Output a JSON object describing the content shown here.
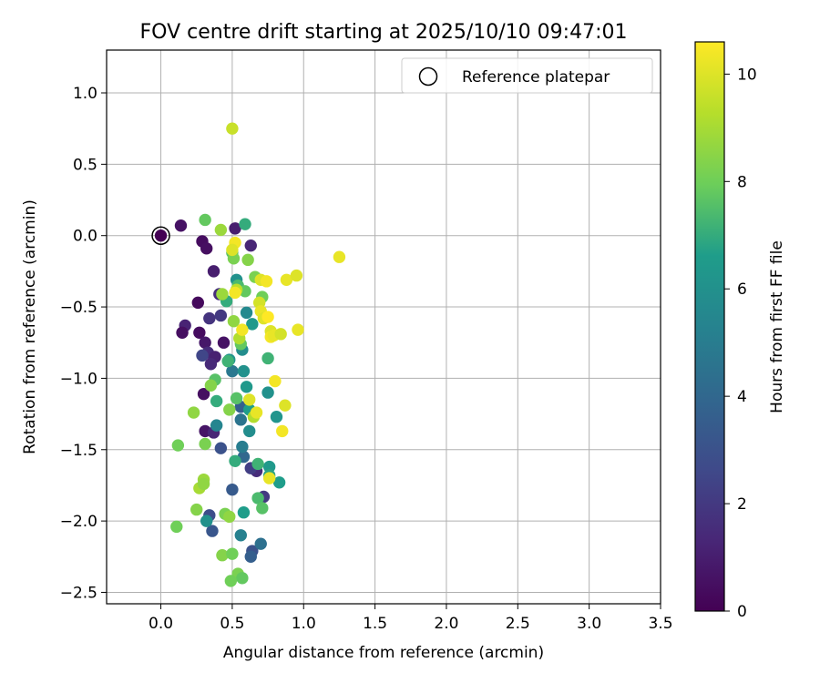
{
  "chart_data": {
    "type": "scatter",
    "title": "FOV centre drift starting at 2025/10/10 09:47:01",
    "xlabel": "Angular distance from reference (arcmin)",
    "ylabel": "Rotation from reference (arcmin)",
    "xlim": [
      -0.38,
      3.5
    ],
    "ylim": [
      -2.58,
      1.3
    ],
    "x_ticks": [
      0.0,
      0.5,
      1.0,
      1.5,
      2.0,
      2.5,
      3.0,
      3.5
    ],
    "x_tick_labels": [
      "0.0",
      "0.5",
      "1.0",
      "1.5",
      "2.0",
      "2.5",
      "3.0",
      "3.5"
    ],
    "y_ticks": [
      -2.5,
      -2.0,
      -1.5,
      -1.0,
      -0.5,
      0.0,
      0.5,
      1.0
    ],
    "y_tick_labels": [
      "−2.5",
      "−2.0",
      "−1.5",
      "−1.0",
      "−0.5",
      "0.0",
      "0.5",
      "1.0"
    ],
    "grid": true,
    "legend": {
      "label": "Reference platepar",
      "placement": "top-right"
    },
    "reference_point": {
      "x": 0.0,
      "y": 0.0,
      "hours": 0.0
    },
    "colorbar": {
      "label": "Hours from first FF file",
      "min": 0,
      "max": 10.6,
      "ticks": [
        0,
        2,
        4,
        6,
        8,
        10
      ],
      "tick_labels": [
        "0",
        "2",
        "4",
        "6",
        "8",
        "10"
      ],
      "colormap": "viridis"
    },
    "colormap_stops": [
      "#440154",
      "#482777",
      "#3f4a8a",
      "#31678e",
      "#26838f",
      "#1f9d8a",
      "#6cce5a",
      "#b6de2b",
      "#fee825"
    ],
    "points": [
      {
        "x": 0.14,
        "y": 0.07,
        "h": 0.6
      },
      {
        "x": 0.29,
        "y": -0.04,
        "h": 0.4
      },
      {
        "x": 0.32,
        "y": -0.09,
        "h": 0.5
      },
      {
        "x": 0.37,
        "y": -0.25,
        "h": 1.0
      },
      {
        "x": 0.26,
        "y": -0.47,
        "h": 0.3
      },
      {
        "x": 0.41,
        "y": -0.41,
        "h": 1.6
      },
      {
        "x": 0.34,
        "y": -0.58,
        "h": 1.8
      },
      {
        "x": 0.42,
        "y": -0.56,
        "h": 2.0
      },
      {
        "x": 0.17,
        "y": -0.63,
        "h": 1.2
      },
      {
        "x": 0.15,
        "y": -0.68,
        "h": 0.5
      },
      {
        "x": 0.27,
        "y": -0.68,
        "h": 0.4
      },
      {
        "x": 0.31,
        "y": -0.75,
        "h": 0.8
      },
      {
        "x": 0.44,
        "y": -0.75,
        "h": 0.6
      },
      {
        "x": 0.33,
        "y": -0.82,
        "h": 1.5
      },
      {
        "x": 0.29,
        "y": -0.84,
        "h": 2.5
      },
      {
        "x": 0.38,
        "y": -0.85,
        "h": 1.1
      },
      {
        "x": 0.35,
        "y": -0.9,
        "h": 1.4
      },
      {
        "x": 0.3,
        "y": -1.11,
        "h": 0.5
      },
      {
        "x": 0.31,
        "y": -1.37,
        "h": 0.7
      },
      {
        "x": 0.37,
        "y": -1.38,
        "h": 1.3
      },
      {
        "x": 0.42,
        "y": -1.49,
        "h": 3.0
      },
      {
        "x": 0.52,
        "y": 0.05,
        "h": 1.0
      },
      {
        "x": 0.63,
        "y": -0.07,
        "h": 1.3
      },
      {
        "x": 0.67,
        "y": -1.65,
        "h": 1.5
      },
      {
        "x": 0.63,
        "y": -1.63,
        "h": 2.2
      },
      {
        "x": 0.72,
        "y": -1.83,
        "h": 2.0
      },
      {
        "x": 0.5,
        "y": -1.78,
        "h": 3.4
      },
      {
        "x": 0.34,
        "y": -1.96,
        "h": 2.8
      },
      {
        "x": 0.36,
        "y": -2.07,
        "h": 3.2
      },
      {
        "x": 0.64,
        "y": -2.21,
        "h": 3.0
      },
      {
        "x": 0.7,
        "y": -2.16,
        "h": 4.4
      },
      {
        "x": 0.63,
        "y": -2.25,
        "h": 3.6
      },
      {
        "x": 0.56,
        "y": -2.1,
        "h": 5.2
      },
      {
        "x": 0.5,
        "y": -0.95,
        "h": 4.8
      },
      {
        "x": 0.56,
        "y": -1.2,
        "h": 3.6
      },
      {
        "x": 0.56,
        "y": -1.29,
        "h": 4.6
      },
      {
        "x": 0.58,
        "y": -1.55,
        "h": 4.0
      },
      {
        "x": 0.57,
        "y": -1.48,
        "h": 5.0
      },
      {
        "x": 0.39,
        "y": -1.33,
        "h": 5.4
      },
      {
        "x": 0.57,
        "y": -0.8,
        "h": 5.8
      },
      {
        "x": 0.6,
        "y": -0.54,
        "h": 5.6
      },
      {
        "x": 0.53,
        "y": -0.31,
        "h": 6.0
      },
      {
        "x": 0.64,
        "y": -0.62,
        "h": 6.4
      },
      {
        "x": 0.58,
        "y": -0.95,
        "h": 6.0
      },
      {
        "x": 0.48,
        "y": -0.87,
        "h": 6.2
      },
      {
        "x": 0.6,
        "y": -1.06,
        "h": 6.4
      },
      {
        "x": 0.62,
        "y": -1.37,
        "h": 5.8
      },
      {
        "x": 0.62,
        "y": -1.22,
        "h": 6.6
      },
      {
        "x": 0.75,
        "y": -1.1,
        "h": 6.0
      },
      {
        "x": 0.81,
        "y": -1.27,
        "h": 6.2
      },
      {
        "x": 0.76,
        "y": -1.62,
        "h": 6.4
      },
      {
        "x": 0.76,
        "y": -1.68,
        "h": 6.8
      },
      {
        "x": 0.83,
        "y": -1.73,
        "h": 6.6
      },
      {
        "x": 0.68,
        "y": -1.6,
        "h": 7.2
      },
      {
        "x": 0.52,
        "y": -1.58,
        "h": 7.0
      },
      {
        "x": 0.32,
        "y": -2.0,
        "h": 6.0
      },
      {
        "x": 0.58,
        "y": -1.94,
        "h": 6.6
      },
      {
        "x": 0.68,
        "y": -1.84,
        "h": 7.4
      },
      {
        "x": 0.71,
        "y": -1.91,
        "h": 7.6
      },
      {
        "x": 0.59,
        "y": 0.08,
        "h": 7.0
      },
      {
        "x": 0.31,
        "y": 0.11,
        "h": 7.8
      },
      {
        "x": 0.42,
        "y": 0.04,
        "h": 8.8
      },
      {
        "x": 0.5,
        "y": -0.12,
        "h": 7.6
      },
      {
        "x": 0.51,
        "y": -0.16,
        "h": 8.2
      },
      {
        "x": 0.61,
        "y": -0.17,
        "h": 8.4
      },
      {
        "x": 0.54,
        "y": -0.35,
        "h": 7.4
      },
      {
        "x": 0.59,
        "y": -0.39,
        "h": 7.8
      },
      {
        "x": 0.46,
        "y": -0.46,
        "h": 7.0
      },
      {
        "x": 0.66,
        "y": -0.29,
        "h": 8.2
      },
      {
        "x": 0.71,
        "y": -0.43,
        "h": 8.0
      },
      {
        "x": 0.43,
        "y": -0.41,
        "h": 8.8
      },
      {
        "x": 0.53,
        "y": -0.38,
        "h": 9.4
      },
      {
        "x": 0.51,
        "y": -0.6,
        "h": 8.6
      },
      {
        "x": 0.56,
        "y": -0.76,
        "h": 7.8
      },
      {
        "x": 0.55,
        "y": -0.72,
        "h": 9.2
      },
      {
        "x": 0.47,
        "y": -0.88,
        "h": 7.2
      },
      {
        "x": 0.38,
        "y": -1.01,
        "h": 7.6
      },
      {
        "x": 0.35,
        "y": -1.05,
        "h": 8.4
      },
      {
        "x": 0.39,
        "y": -1.16,
        "h": 7.0
      },
      {
        "x": 0.48,
        "y": -1.22,
        "h": 8.4
      },
      {
        "x": 0.53,
        "y": -1.14,
        "h": 7.6
      },
      {
        "x": 0.23,
        "y": -1.24,
        "h": 8.6
      },
      {
        "x": 0.12,
        "y": -1.47,
        "h": 8.0
      },
      {
        "x": 0.31,
        "y": -1.46,
        "h": 8.2
      },
      {
        "x": 0.3,
        "y": -1.71,
        "h": 8.8
      },
      {
        "x": 0.27,
        "y": -1.77,
        "h": 9.0
      },
      {
        "x": 0.3,
        "y": -1.74,
        "h": 8.6
      },
      {
        "x": 0.25,
        "y": -1.92,
        "h": 8.4
      },
      {
        "x": 0.45,
        "y": -1.95,
        "h": 8.2
      },
      {
        "x": 0.48,
        "y": -1.97,
        "h": 8.6
      },
      {
        "x": 0.11,
        "y": -2.04,
        "h": 8.0
      },
      {
        "x": 0.43,
        "y": -2.24,
        "h": 8.4
      },
      {
        "x": 0.5,
        "y": -2.23,
        "h": 8.0
      },
      {
        "x": 0.54,
        "y": -2.37,
        "h": 8.2
      },
      {
        "x": 0.57,
        "y": -2.4,
        "h": 7.8
      },
      {
        "x": 0.49,
        "y": -2.42,
        "h": 8.0
      },
      {
        "x": 0.75,
        "y": -0.86,
        "h": 7.2
      },
      {
        "x": 0.65,
        "y": -1.27,
        "h": 9.2
      },
      {
        "x": 0.5,
        "y": 0.75,
        "h": 9.6
      },
      {
        "x": 1.25,
        "y": -0.15,
        "h": 10.2
      },
      {
        "x": 0.52,
        "y": -0.05,
        "h": 10.4
      },
      {
        "x": 0.5,
        "y": -0.1,
        "h": 10.0
      },
      {
        "x": 0.7,
        "y": -0.31,
        "h": 10.0
      },
      {
        "x": 0.74,
        "y": -0.32,
        "h": 10.4
      },
      {
        "x": 0.88,
        "y": -0.31,
        "h": 10.2
      },
      {
        "x": 0.95,
        "y": -0.28,
        "h": 10.0
      },
      {
        "x": 0.52,
        "y": -0.4,
        "h": 10.4
      },
      {
        "x": 0.69,
        "y": -0.47,
        "h": 9.8
      },
      {
        "x": 0.7,
        "y": -0.53,
        "h": 10.2
      },
      {
        "x": 0.72,
        "y": -0.58,
        "h": 10.0
      },
      {
        "x": 0.75,
        "y": -0.57,
        "h": 10.6
      },
      {
        "x": 0.57,
        "y": -0.66,
        "h": 10.4
      },
      {
        "x": 0.77,
        "y": -0.67,
        "h": 10.0
      },
      {
        "x": 0.77,
        "y": -0.71,
        "h": 10.4
      },
      {
        "x": 0.79,
        "y": -0.7,
        "h": 10.2
      },
      {
        "x": 0.84,
        "y": -0.69,
        "h": 9.8
      },
      {
        "x": 0.96,
        "y": -0.66,
        "h": 10.2
      },
      {
        "x": 0.62,
        "y": -1.15,
        "h": 10.0
      },
      {
        "x": 0.67,
        "y": -1.24,
        "h": 10.2
      },
      {
        "x": 0.8,
        "y": -1.02,
        "h": 10.4
      },
      {
        "x": 0.87,
        "y": -1.19,
        "h": 10.0
      },
      {
        "x": 0.85,
        "y": -1.37,
        "h": 10.4
      },
      {
        "x": 0.76,
        "y": -1.7,
        "h": 10.2
      }
    ]
  }
}
